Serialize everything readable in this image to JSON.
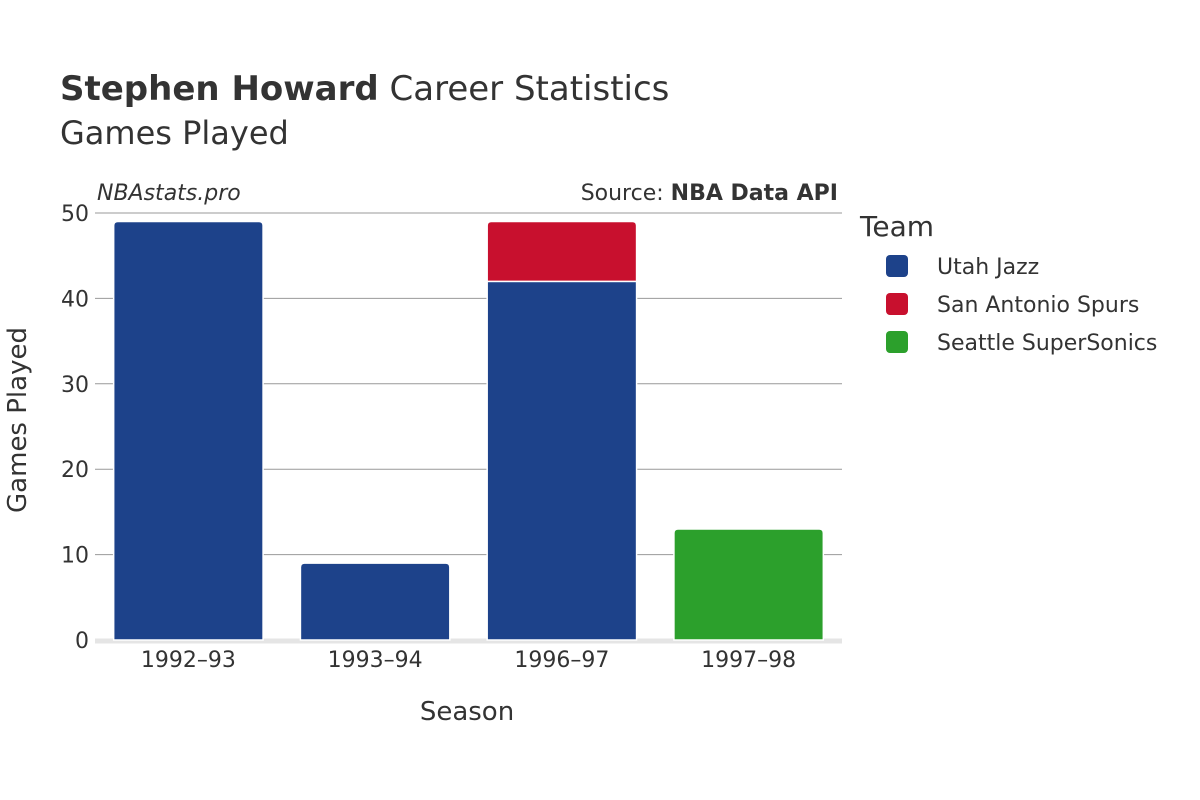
{
  "header": {
    "player_name": "Stephen Howard",
    "title_rest": " Career Statistics",
    "subtitle": "Games Played"
  },
  "watermark": "NBAstats.pro",
  "source": {
    "prefix": "Source: ",
    "name": "NBA Data API"
  },
  "legend": {
    "title": "Team",
    "items": [
      {
        "label": "Utah Jazz",
        "color": "#1d428a"
      },
      {
        "label": "San Antonio Spurs",
        "color": "#c8102e"
      },
      {
        "label": "Seattle SuperSonics",
        "color": "#2ca02c"
      }
    ]
  },
  "chart_data": {
    "type": "bar",
    "stacked": true,
    "title": "Stephen Howard Career Statistics",
    "subtitle": "Games Played",
    "xlabel": "Season",
    "ylabel": "Games Played",
    "ylim": [
      0,
      50
    ],
    "yticks": [
      0,
      10,
      20,
      30,
      40,
      50
    ],
    "grid": true,
    "legend_position": "right",
    "categories": [
      "1992–93",
      "1993–94",
      "1996–97",
      "1997–98"
    ],
    "series": [
      {
        "name": "Utah Jazz",
        "color": "#1d428a",
        "values": [
          49,
          9,
          42,
          0
        ]
      },
      {
        "name": "San Antonio Spurs",
        "color": "#c8102e",
        "values": [
          0,
          0,
          7,
          0
        ]
      },
      {
        "name": "Seattle SuperSonics",
        "color": "#2ca02c",
        "values": [
          0,
          0,
          0,
          13
        ]
      }
    ]
  }
}
